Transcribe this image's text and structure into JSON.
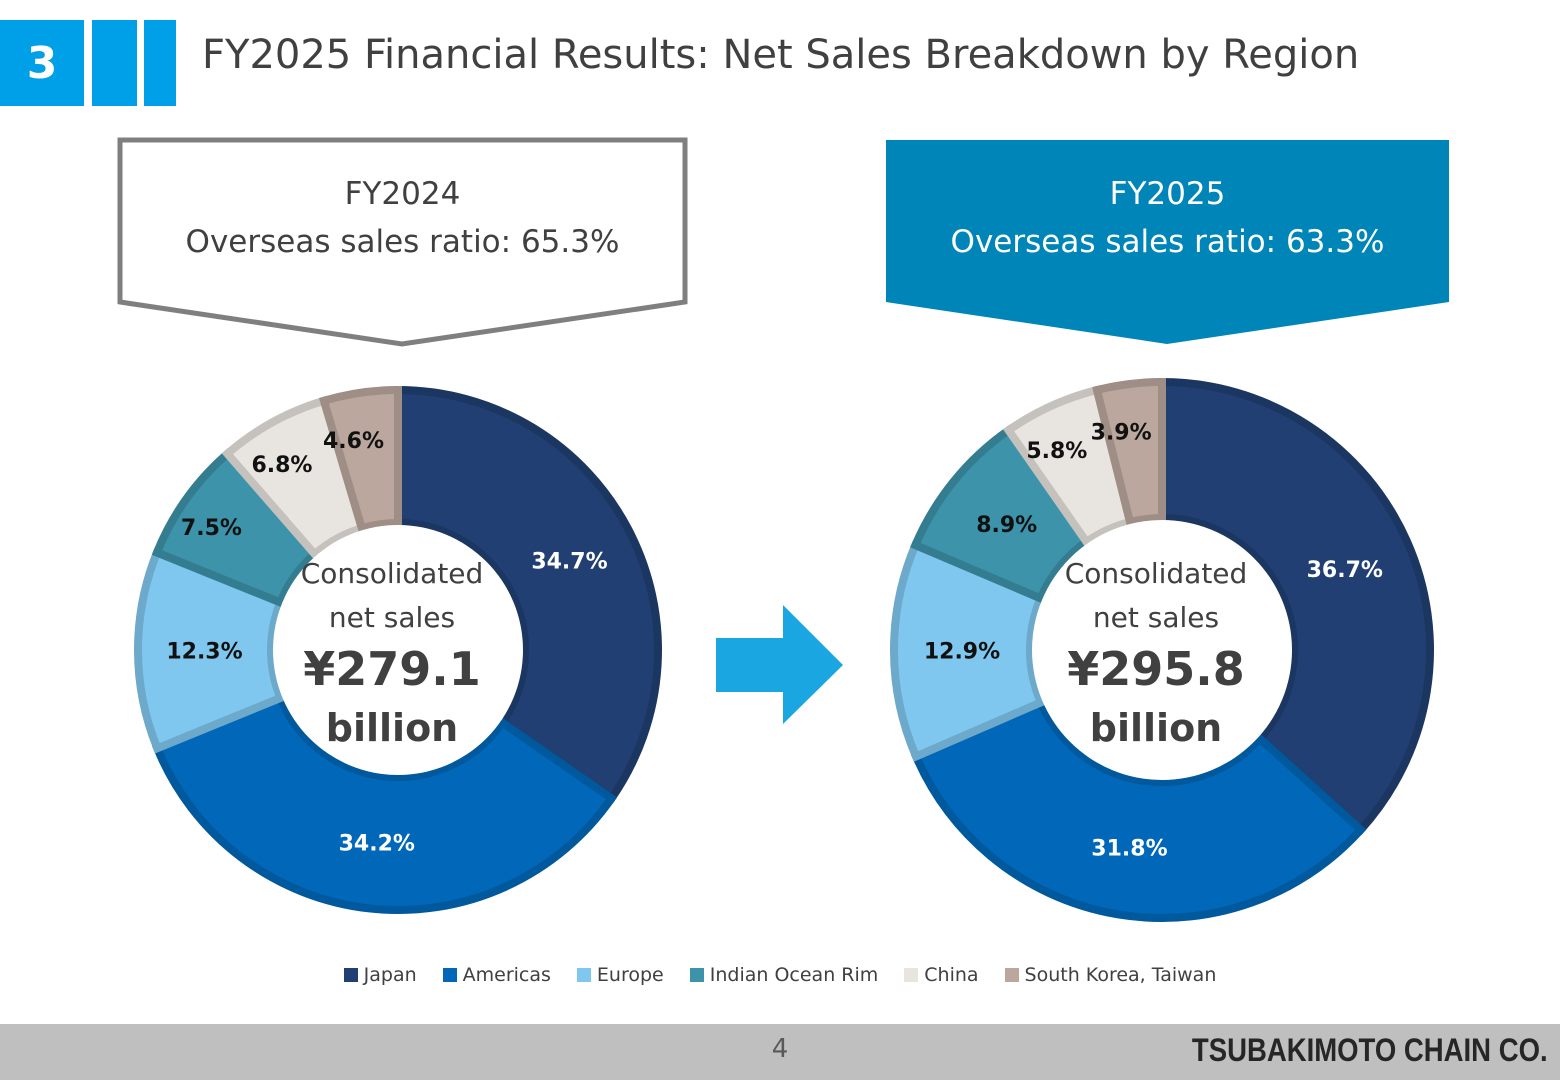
{
  "header": {
    "section_number": "3",
    "title": "FY2025 Financial Results: Net Sales Breakdown by Region"
  },
  "callouts": {
    "left": {
      "year": "FY2024",
      "ratio": "Overseas sales ratio: 65.3%"
    },
    "right": {
      "year": "FY2025",
      "ratio": "Overseas sales ratio: 63.3%"
    }
  },
  "colors": {
    "Japan": "#213f73",
    "Americas": "#0067b9",
    "Europe": "#7fc7ee",
    "Indian Ocean Rim": "#3d93aa",
    "China": "#e8e4df",
    "South Korea, Taiwan": "#bba79e",
    "accent": "#00a0e9",
    "callout_fill": "#0085b8",
    "arrow": "#1aa7e1"
  },
  "chart_data": [
    {
      "type": "pie",
      "name": "FY2024",
      "categories": [
        "Japan",
        "Americas",
        "Europe",
        "Indian Ocean Rim",
        "China",
        "South Korea, Taiwan"
      ],
      "values": [
        34.7,
        34.2,
        12.3,
        7.5,
        6.8,
        4.6
      ],
      "labels": [
        "34.7%",
        "34.2%",
        "12.3%",
        "7.5%",
        "6.8%",
        "4.6%"
      ],
      "center": {
        "line1": "Consolidated",
        "line2": "net sales",
        "amount": "¥279.1",
        "unit": "billion"
      }
    },
    {
      "type": "pie",
      "name": "FY2025",
      "categories": [
        "Japan",
        "Americas",
        "Europe",
        "Indian Ocean Rim",
        "China",
        "South Korea, Taiwan"
      ],
      "values": [
        36.7,
        31.8,
        12.9,
        8.9,
        5.8,
        3.9
      ],
      "labels": [
        "36.7%",
        "31.8%",
        "12.9%",
        "8.9%",
        "5.8%",
        "3.9%"
      ],
      "center": {
        "line1": "Consolidated",
        "line2": "net sales",
        "amount": "¥295.8",
        "unit": "billion"
      }
    }
  ],
  "legend": [
    {
      "label": "Japan",
      "color": "#213f73"
    },
    {
      "label": "Americas",
      "color": "#0067b9"
    },
    {
      "label": "Europe",
      "color": "#7fc7ee"
    },
    {
      "label": "Indian Ocean Rim",
      "color": "#3d93aa"
    },
    {
      "label": "China",
      "color": "#e8e4df"
    },
    {
      "label": "South Korea, Taiwan",
      "color": "#bba79e"
    }
  ],
  "footer": {
    "page_number": "4",
    "company": "TSUBAKIMOTO CHAIN CO."
  }
}
